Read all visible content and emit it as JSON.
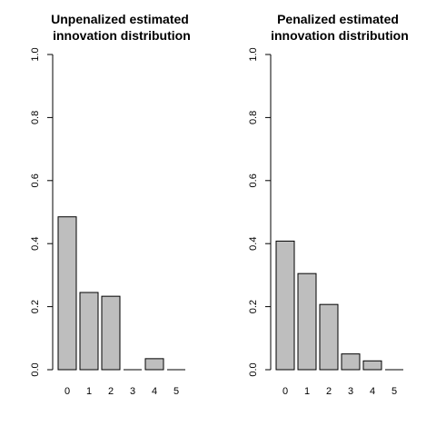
{
  "chart_data": [
    {
      "type": "bar",
      "title_lines": [
        "Unpenalized estimated",
        " innovation distribution"
      ],
      "categories": [
        "0",
        "1",
        "2",
        "3",
        "4",
        "5"
      ],
      "values": [
        0.485,
        0.245,
        0.233,
        0.0,
        0.035,
        0.0
      ],
      "ylim": [
        0,
        1
      ],
      "yticks": [
        "0.0",
        "0.2",
        "0.4",
        "0.6",
        "0.8",
        "1.0"
      ],
      "xlabel": "",
      "ylabel": "",
      "bar_color": "#bebebe"
    },
    {
      "type": "bar",
      "title_lines": [
        "Penalized estimated",
        " innovation distribution"
      ],
      "categories": [
        "0",
        "1",
        "2",
        "3",
        "4",
        "5"
      ],
      "values": [
        0.408,
        0.305,
        0.207,
        0.05,
        0.028,
        0.0
      ],
      "ylim": [
        0,
        1
      ],
      "yticks": [
        "0.0",
        "0.2",
        "0.4",
        "0.6",
        "0.8",
        "1.0"
      ],
      "xlabel": "",
      "ylabel": "",
      "bar_color": "#bebebe"
    }
  ]
}
